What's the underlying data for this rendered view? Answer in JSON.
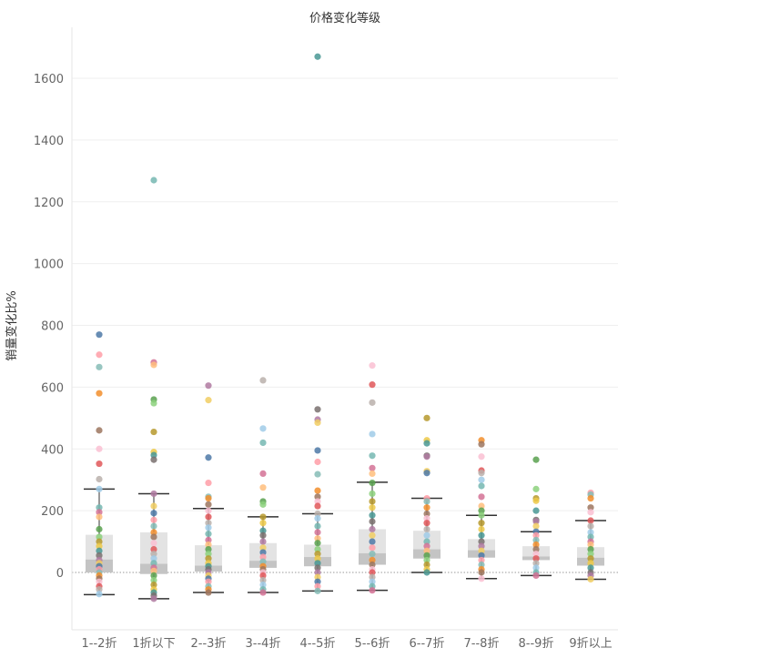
{
  "chart_data": {
    "type": "box-strip",
    "title": "价格变化等级",
    "xlabel": "",
    "ylabel": "销量变化比%",
    "ylim": [
      -180,
      1780
    ],
    "yticks": [
      0,
      200,
      400,
      600,
      800,
      1000,
      1200,
      1400,
      1600
    ],
    "ytick_labels": [
      "0",
      "200",
      "400",
      "600",
      "800",
      "1000",
      "1200",
      "1400",
      "1600"
    ],
    "categories": [
      "1--2折",
      "1折以下",
      "2--3折",
      "3--4折",
      "4--5折",
      "5--6折",
      "6--7折",
      "7--8折",
      "8--9折",
      "9折以上"
    ],
    "grid": true,
    "zero_reference_line": true,
    "box_colors": {
      "upper": "#e3e3e3",
      "lower": "#c4c4c4",
      "whisker": "#333333"
    },
    "boxes": [
      {
        "category": "1--2折",
        "min": -72,
        "q1": 0,
        "median": 42,
        "q3": 122,
        "max": 270
      },
      {
        "category": "1折以下",
        "min": -85,
        "q1": -5,
        "median": 28,
        "q3": 130,
        "max": 255
      },
      {
        "category": "2--3折",
        "min": -65,
        "q1": 3,
        "median": 22,
        "q3": 88,
        "max": 207
      },
      {
        "category": "3--4折",
        "min": -65,
        "q1": 15,
        "median": 38,
        "q3": 95,
        "max": 180
      },
      {
        "category": "4--5折",
        "min": -60,
        "q1": 20,
        "median": 50,
        "q3": 90,
        "max": 190
      },
      {
        "category": "5--6折",
        "min": -58,
        "q1": 25,
        "median": 62,
        "q3": 140,
        "max": 292
      },
      {
        "category": "6--7折",
        "min": 0,
        "q1": 45,
        "median": 75,
        "q3": 135,
        "max": 240
      },
      {
        "category": "7--8折",
        "min": -20,
        "q1": 48,
        "median": 72,
        "q3": 108,
        "max": 185
      },
      {
        "category": "8--9折",
        "min": -10,
        "q1": 40,
        "median": 52,
        "q3": 85,
        "max": 132
      },
      {
        "category": "9折以上",
        "min": -22,
        "q1": 22,
        "median": 48,
        "q3": 82,
        "max": 168
      }
    ],
    "series": [
      {
        "category": "1--2折",
        "values": [
          770,
          705,
          665,
          580,
          460,
          400,
          352,
          302,
          270,
          210,
          195,
          180,
          140,
          115,
          100,
          85,
          70,
          55,
          40,
          30,
          20,
          10,
          0,
          -10,
          -20,
          -30,
          -45,
          -55,
          -70
        ]
      },
      {
        "category": "1折以下",
        "values": [
          1270,
          680,
          672,
          560,
          548,
          455,
          390,
          380,
          365,
          255,
          215,
          192,
          170,
          150,
          130,
          115,
          95,
          75,
          60,
          45,
          30,
          15,
          5,
          -10,
          -25,
          -40,
          -55,
          -65,
          -75,
          -85
        ]
      },
      {
        "category": "2--3折",
        "values": [
          605,
          558,
          372,
          290,
          245,
          240,
          220,
          200,
          180,
          160,
          145,
          125,
          105,
          90,
          75,
          60,
          45,
          30,
          20,
          10,
          0,
          -10,
          -20,
          -30,
          -45,
          -55,
          -65
        ]
      },
      {
        "category": "3--4折",
        "values": [
          622,
          466,
          420,
          320,
          275,
          230,
          220,
          180,
          160,
          135,
          120,
          100,
          80,
          65,
          50,
          35,
          20,
          10,
          0,
          -10,
          -25,
          -40,
          -55,
          -65
        ]
      },
      {
        "category": "4--5折",
        "values": [
          1670,
          528,
          495,
          485,
          395,
          358,
          318,
          265,
          245,
          230,
          215,
          190,
          175,
          150,
          130,
          110,
          95,
          75,
          60,
          45,
          30,
          15,
          0,
          -15,
          -30,
          -45,
          -60
        ]
      },
      {
        "category": "5--6折",
        "values": [
          670,
          608,
          550,
          448,
          378,
          338,
          320,
          290,
          255,
          230,
          210,
          185,
          165,
          140,
          120,
          100,
          80,
          60,
          40,
          25,
          10,
          0,
          -15,
          -30,
          -45,
          -58
        ]
      },
      {
        "category": "6--7折",
        "values": [
          500,
          428,
          418,
          378,
          375,
          328,
          322,
          240,
          230,
          210,
          190,
          175,
          160,
          140,
          120,
          100,
          85,
          70,
          55,
          40,
          25,
          10,
          0
        ]
      },
      {
        "category": "7--8折",
        "values": [
          428,
          415,
          375,
          330,
          322,
          300,
          280,
          245,
          215,
          200,
          185,
          160,
          140,
          120,
          100,
          85,
          70,
          55,
          40,
          25,
          10,
          0,
          -20
        ]
      },
      {
        "category": "8--9折",
        "values": [
          365,
          270,
          240,
          232,
          200,
          170,
          165,
          150,
          132,
          120,
          105,
          90,
          75,
          60,
          45,
          30,
          15,
          0,
          -10
        ]
      },
      {
        "category": "9折以上",
        "values": [
          258,
          252,
          240,
          210,
          195,
          168,
          150,
          130,
          115,
          100,
          90,
          75,
          60,
          45,
          30,
          15,
          0,
          -10,
          -22
        ]
      }
    ],
    "palette": [
      "#4e79a7",
      "#f28e2b",
      "#e15759",
      "#76b7b2",
      "#59a14f",
      "#edc948",
      "#b07aa1",
      "#ff9da7",
      "#9c755f",
      "#bab0ac",
      "#d37295",
      "#8cd17d",
      "#499894",
      "#f1ce63",
      "#86bcb6",
      "#fabfd2",
      "#a0cbe8",
      "#ffbe7d",
      "#b6992d",
      "#79706e"
    ]
  }
}
